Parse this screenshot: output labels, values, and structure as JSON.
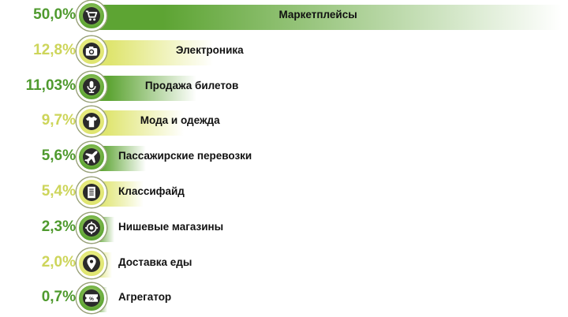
{
  "colors": {
    "dark_green": "#5da433",
    "light_green": "#dfe570",
    "pct_dark": "#4f9a2e",
    "pct_light": "#cdd55a"
  },
  "chart_data": {
    "type": "bar",
    "orientation": "horizontal",
    "categories": [
      "Маркетплейсы",
      "Электроника",
      "Продажа билетов",
      "Мода и одежда",
      "Пассажирские перевозки",
      "Классифайд",
      "Нишевые магазины",
      "Доставка еды",
      "Агрегатор"
    ],
    "values": [
      50.0,
      12.8,
      11.03,
      9.7,
      5.6,
      5.4,
      2.3,
      2.0,
      0.7
    ],
    "value_labels": [
      "50,0%",
      "12,8%",
      "11,03%",
      "9,7%",
      "5,6%",
      "5,4%",
      "2,3%",
      "2,0%",
      "0,7%"
    ],
    "icons": [
      "cart-icon",
      "camera-icon",
      "microphone-icon",
      "shirt-icon",
      "airplane-icon",
      "document-icon",
      "target-icon",
      "location-pin-icon",
      "discount-ticket-icon"
    ],
    "tone": [
      "dark",
      "light",
      "dark",
      "light",
      "dark",
      "light",
      "dark",
      "light",
      "dark"
    ],
    "grid": false,
    "legend": "none"
  }
}
